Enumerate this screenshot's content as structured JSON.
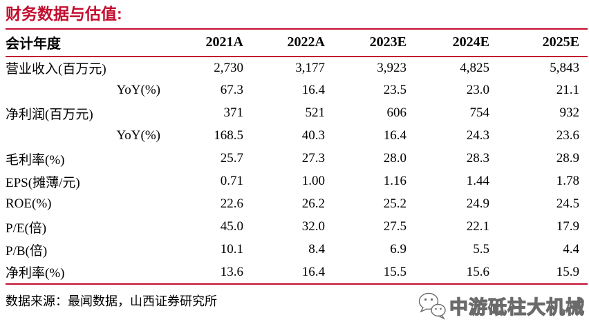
{
  "title": "财务数据与估值:",
  "colors": {
    "accent_red": "#C30D2E",
    "text": "#000000",
    "watermark_outline": "#6a6a6a"
  },
  "chart_data": {
    "type": "table",
    "title": "财务数据与估值",
    "header": [
      "会计年度",
      "2021A",
      "2022A",
      "2023E",
      "2024E",
      "2025E"
    ],
    "rows": [
      {
        "label": "营业收入(百万元)",
        "indent": false,
        "values": [
          "2,730",
          "3,177",
          "3,923",
          "4,825",
          "5,843"
        ]
      },
      {
        "label": "YoY(%)",
        "indent": true,
        "values": [
          "67.3",
          "16.4",
          "23.5",
          "23.0",
          "21.1"
        ]
      },
      {
        "label": "净利润(百万元)",
        "indent": false,
        "values": [
          "371",
          "521",
          "606",
          "754",
          "932"
        ]
      },
      {
        "label": "YoY(%)",
        "indent": true,
        "values": [
          "168.5",
          "40.3",
          "16.4",
          "24.3",
          "23.6"
        ]
      },
      {
        "label": "毛利率(%)",
        "indent": false,
        "values": [
          "25.7",
          "27.3",
          "28.0",
          "28.3",
          "28.9"
        ]
      },
      {
        "label": "EPS(摊薄/元)",
        "indent": false,
        "values": [
          "0.71",
          "1.00",
          "1.16",
          "1.44",
          "1.78"
        ]
      },
      {
        "label": "ROE(%)",
        "indent": false,
        "values": [
          "22.6",
          "26.2",
          "25.2",
          "24.9",
          "24.5"
        ]
      },
      {
        "label": "P/E(倍)",
        "indent": false,
        "values": [
          "45.0",
          "32.0",
          "27.5",
          "22.1",
          "17.9"
        ]
      },
      {
        "label": "P/B(倍)",
        "indent": false,
        "values": [
          "10.1",
          "8.4",
          "6.9",
          "5.5",
          "4.4"
        ]
      },
      {
        "label": "净利率(%)",
        "indent": false,
        "values": [
          "13.6",
          "16.4",
          "15.5",
          "15.6",
          "15.9"
        ]
      }
    ]
  },
  "footer": {
    "source": "数据来源：最闻数据，山西证券研究所"
  },
  "watermark": {
    "icon": "wechat-icon",
    "text": "中游砥柱大机械"
  }
}
